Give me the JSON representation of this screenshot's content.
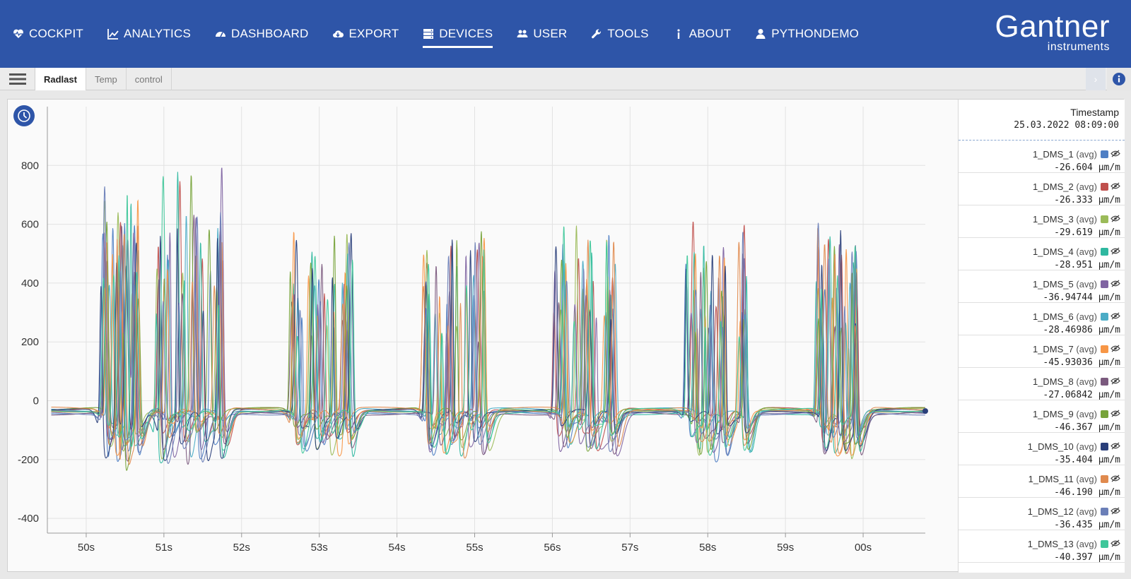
{
  "nav": {
    "items": [
      {
        "label": "COCKPIT",
        "icon": "heartbeat-icon",
        "active": false
      },
      {
        "label": "ANALYTICS",
        "icon": "line-chart-icon",
        "active": false
      },
      {
        "label": "DASHBOARD",
        "icon": "gauge-icon",
        "active": false
      },
      {
        "label": "EXPORT",
        "icon": "cloud-download-icon",
        "active": false
      },
      {
        "label": "DEVICES",
        "icon": "server-icon",
        "active": true
      },
      {
        "label": "USER",
        "icon": "users-icon",
        "active": false
      },
      {
        "label": "TOOLS",
        "icon": "wrench-icon",
        "active": false
      },
      {
        "label": "ABOUT",
        "icon": "info-icon",
        "active": false
      },
      {
        "label": "PYTHONDEMO",
        "icon": "user-icon",
        "active": false
      }
    ]
  },
  "logo": {
    "brand": "Gantner",
    "sub": "instruments"
  },
  "tabs": [
    {
      "label": "Radlast",
      "active": true
    },
    {
      "label": "Temp",
      "active": false
    },
    {
      "label": "control",
      "active": false
    }
  ],
  "colors": {
    "header": "#2e55a8",
    "accent": "#2e55a8"
  },
  "legend": {
    "timestamp_label": "Timestamp",
    "timestamp_value": "25.03.2022 08:09:00",
    "avg_label": "(avg)",
    "channels": [
      {
        "name": "1_DMS_1",
        "value": "-26.604",
        "unit": "µm/m",
        "color": "#4f7fc4"
      },
      {
        "name": "1_DMS_2",
        "value": "-26.333",
        "unit": "µm/m",
        "color": "#c0504d"
      },
      {
        "name": "1_DMS_3",
        "value": "-29.619",
        "unit": "µm/m",
        "color": "#9bbb59"
      },
      {
        "name": "1_DMS_4",
        "value": "-28.951",
        "unit": "µm/m",
        "color": "#2fb8a0"
      },
      {
        "name": "1_DMS_5",
        "value": "-36.94744",
        "unit": "µm/m",
        "color": "#8064a2"
      },
      {
        "name": "1_DMS_6",
        "value": "-28.46986",
        "unit": "µm/m",
        "color": "#4bacc6"
      },
      {
        "name": "1_DMS_7",
        "value": "-45.93036",
        "unit": "µm/m",
        "color": "#f79646"
      },
      {
        "name": "1_DMS_8",
        "value": "-27.06842",
        "unit": "µm/m",
        "color": "#7b5a7e"
      },
      {
        "name": "1_DMS_9",
        "value": "-46.367",
        "unit": "µm/m",
        "color": "#77a33a"
      },
      {
        "name": "1_DMS_10",
        "value": "-35.404",
        "unit": "µm/m",
        "color": "#2a3f7a"
      },
      {
        "name": "1_DMS_11",
        "value": "-46.190",
        "unit": "µm/m",
        "color": "#e08a4e"
      },
      {
        "name": "1_DMS_12",
        "value": "-36.435",
        "unit": "µm/m",
        "color": "#6b7fb8"
      },
      {
        "name": "1_DMS_13",
        "value": "-40.397",
        "unit": "µm/m",
        "color": "#3fc79a"
      }
    ]
  },
  "chart_data": {
    "type": "line",
    "x_ticks": [
      "50s",
      "51s",
      "52s",
      "53s",
      "54s",
      "55s",
      "56s",
      "57s",
      "58s",
      "59s",
      "00s"
    ],
    "xlim": [
      49.5,
      60.8
    ],
    "y_ticks": [
      "800",
      "600",
      "400",
      "200",
      "0",
      "-200",
      "-400"
    ],
    "ylim": [
      -450,
      1000
    ],
    "grid": true,
    "baseline": -35,
    "bursts": [
      {
        "start": 50.15,
        "end": 50.7,
        "peak_max": 860,
        "trough_min": -330
      },
      {
        "start": 50.8,
        "end": 51.8,
        "peak_max": 870,
        "trough_min": -340
      },
      {
        "start": 52.55,
        "end": 53.45,
        "peak_max": 680,
        "trough_min": -300
      },
      {
        "start": 54.25,
        "end": 55.15,
        "peak_max": 680,
        "trough_min": -300
      },
      {
        "start": 55.95,
        "end": 56.85,
        "peak_max": 690,
        "trough_min": -300
      },
      {
        "start": 57.65,
        "end": 58.55,
        "peak_max": 690,
        "trough_min": -300
      },
      {
        "start": 59.35,
        "end": 59.95,
        "peak_max": 700,
        "trough_min": -290
      }
    ],
    "series": [
      {
        "name": "1_DMS_1",
        "color": "#4f7fc4"
      },
      {
        "name": "1_DMS_2",
        "color": "#c0504d"
      },
      {
        "name": "1_DMS_3",
        "color": "#9bbb59"
      },
      {
        "name": "1_DMS_4",
        "color": "#2fb8a0"
      },
      {
        "name": "1_DMS_5",
        "color": "#8064a2"
      },
      {
        "name": "1_DMS_6",
        "color": "#4bacc6"
      },
      {
        "name": "1_DMS_7",
        "color": "#f79646"
      },
      {
        "name": "1_DMS_8",
        "color": "#7b5a7e"
      },
      {
        "name": "1_DMS_9",
        "color": "#77a33a"
      },
      {
        "name": "1_DMS_10",
        "color": "#2a3f7a"
      },
      {
        "name": "1_DMS_11",
        "color": "#e08a4e"
      },
      {
        "name": "1_DMS_12",
        "color": "#6b7fb8"
      },
      {
        "name": "1_DMS_13",
        "color": "#3fc79a"
      }
    ]
  }
}
